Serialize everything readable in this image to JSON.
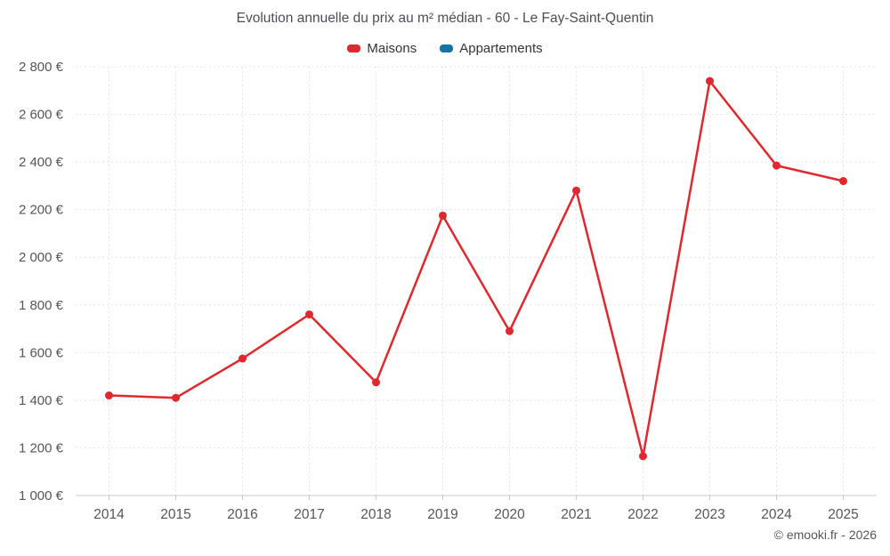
{
  "chart": {
    "title": "Evolution annuelle du prix au m² médian - 60 - Le Fay-Saint-Quentin",
    "footer": "© emooki.fr - 2026"
  },
  "chart_data": {
    "type": "line",
    "categories": [
      "2014",
      "2015",
      "2016",
      "2017",
      "2018",
      "2019",
      "2020",
      "2021",
      "2022",
      "2023",
      "2024",
      "2025"
    ],
    "series": [
      {
        "name": "Maisons",
        "color": "#e0282e",
        "values": [
          1420,
          1410,
          1575,
          1760,
          1475,
          2175,
          1690,
          2280,
          1165,
          2740,
          2385,
          2320
        ]
      },
      {
        "name": "Appartements",
        "color": "#1374a6",
        "values": []
      }
    ],
    "title": "Evolution annuelle du prix au m² médian - 60 - Le Fay-Saint-Quentin",
    "xlabel": "",
    "ylabel": "",
    "ylim": [
      1000,
      2800
    ],
    "ytick_step": 200,
    "y_unit": "€",
    "grid": true,
    "legend_position": "top"
  }
}
